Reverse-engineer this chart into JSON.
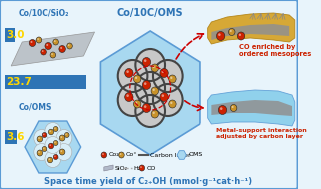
{
  "bg_color": "#e8f4fb",
  "border_color": "#5b9bd5",
  "title_color": "#2e74b5",
  "bar_color": "#2e74b5",
  "bar_labels": [
    "3.0",
    "23.7",
    "3.6"
  ],
  "bar_label_color": "#ffd700",
  "catalyst_labels": [
    "Co/10C/SiO₂",
    "Co/10C/OMS",
    "Co/OMS"
  ],
  "catalyst_label_color": "#2e74b5",
  "co2c_color": "#cc2200",
  "co0_color": "#c8922a",
  "oms_light": "#a8d8f0",
  "oms_dark": "#5b9bd5",
  "silica_color": "#b0b8c0",
  "carbon_color": "#555555",
  "pore_color": "#d0d0d0",
  "gold_tube_color": "#d4a020",
  "blue_tube_color": "#87ceeb",
  "co_enriched_color": "#cc2200",
  "metal_support_color": "#cc2200"
}
